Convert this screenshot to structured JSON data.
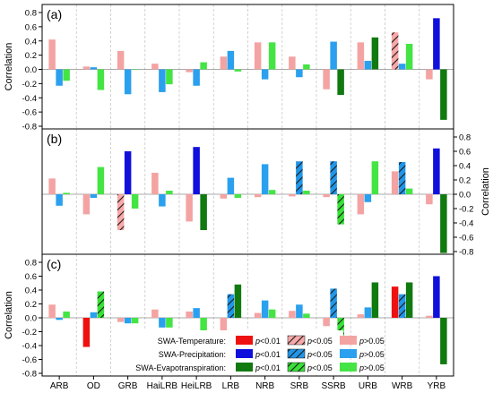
{
  "chart_data": {
    "type": "bar",
    "categories": [
      "ARB",
      "OD",
      "GRB",
      "HaiLRB",
      "HeiLRB",
      "LRB",
      "NRB",
      "SRB",
      "SSRB",
      "URB",
      "WRB",
      "YRB"
    ],
    "panels": [
      {
        "label": "(a)",
        "ylabel": "Correlation",
        "ylim": [
          -0.8,
          0.8
        ],
        "yticks": [
          "0.8",
          "0.6",
          "0.4",
          "0.2",
          "0.0",
          "-0.2",
          "-0.4",
          "-0.6",
          "-0.8"
        ],
        "axis_side": "left",
        "series": [
          {
            "variable": "temperature",
            "values": [
              0.42,
              0.04,
              0.26,
              0.08,
              -0.04,
              0.18,
              0.38,
              0.18,
              -0.28,
              0.38,
              0.52,
              -0.14
            ],
            "signif": [
              "p>0.05",
              "p>0.05",
              "p>0.05",
              "p>0.05",
              "p>0.05",
              "p>0.05",
              "p>0.05",
              "p>0.05",
              "p>0.05",
              "p>0.05",
              "p<0.05",
              "p>0.05"
            ]
          },
          {
            "variable": "precipitation",
            "values": [
              -0.23,
              0.03,
              -0.35,
              -0.32,
              -0.23,
              0.26,
              -0.14,
              -0.11,
              0.39,
              0.12,
              0.08,
              0.72
            ],
            "signif": [
              "p>0.05",
              "p>0.05",
              "p>0.05",
              "p>0.05",
              "p>0.05",
              "p>0.05",
              "p>0.05",
              "p>0.05",
              "p>0.05",
              "p>0.05",
              "p>0.05",
              "p<0.01"
            ]
          },
          {
            "variable": "evapotranspiration",
            "values": [
              -0.16,
              -0.29,
              0.0,
              -0.21,
              0.1,
              -0.03,
              0.38,
              0.07,
              -0.36,
              0.45,
              0.36,
              -0.71
            ],
            "signif": [
              "p>0.05",
              "p>0.05",
              "p>0.05",
              "p>0.05",
              "p>0.05",
              "p>0.05",
              "p>0.05",
              "p>0.05",
              "p<0.01",
              "p<0.01",
              "p>0.05",
              "p<0.01"
            ]
          }
        ]
      },
      {
        "label": "(b)",
        "ylabel": "Correlation",
        "ylim": [
          -0.8,
          0.8
        ],
        "yticks": [
          "0.8",
          "0.6",
          "0.4",
          "0.2",
          "0.0",
          "-0.2",
          "-0.4",
          "-0.6",
          "-0.8"
        ],
        "axis_side": "right",
        "series": [
          {
            "variable": "temperature",
            "values": [
              0.22,
              -0.28,
              -0.5,
              0.3,
              -0.38,
              -0.06,
              -0.04,
              -0.03,
              -0.04,
              -0.28,
              0.32,
              -0.14
            ],
            "signif": [
              "p>0.05",
              "p>0.05",
              "p<0.05",
              "p>0.05",
              "p>0.05",
              "p>0.05",
              "p>0.05",
              "p>0.05",
              "p>0.05",
              "p>0.05",
              "p>0.05",
              "p>0.05"
            ]
          },
          {
            "variable": "precipitation",
            "values": [
              -0.16,
              -0.05,
              0.6,
              -0.17,
              0.66,
              0.23,
              0.42,
              0.46,
              0.46,
              -0.11,
              0.45,
              0.64
            ],
            "signif": [
              "p>0.05",
              "p>0.05",
              "p<0.01",
              "p>0.05",
              "p<0.01",
              "p>0.05",
              "p>0.05",
              "p<0.05",
              "p<0.05",
              "p>0.05",
              "p<0.05",
              "p<0.01"
            ]
          },
          {
            "variable": "evapotranspiration",
            "values": [
              0.02,
              0.38,
              -0.2,
              0.05,
              -0.5,
              -0.05,
              0.06,
              0.05,
              -0.42,
              0.46,
              0.08,
              -0.82
            ],
            "signif": [
              "p>0.05",
              "p>0.05",
              "p>0.05",
              "p>0.05",
              "p<0.01",
              "p>0.05",
              "p>0.05",
              "p>0.05",
              "p<0.05",
              "p>0.05",
              "p>0.05",
              "p<0.01"
            ]
          }
        ]
      },
      {
        "label": "(c)",
        "ylabel": "Correlation",
        "ylim": [
          -0.8,
          0.8
        ],
        "yticks": [
          "0.8",
          "0.6",
          "0.4",
          "0.2",
          "0.0",
          "-0.2",
          "-0.4",
          "-0.6",
          "-0.8"
        ],
        "axis_side": "left",
        "series": [
          {
            "variable": "temperature",
            "values": [
              0.19,
              -0.42,
              -0.06,
              0.12,
              0.09,
              -0.24,
              0.07,
              0.1,
              -0.12,
              0.05,
              0.45,
              0.03
            ],
            "signif": [
              "p>0.05",
              "p<0.01",
              "p>0.05",
              "p>0.05",
              "p>0.05",
              "p>0.05",
              "p>0.05",
              "p>0.05",
              "p>0.05",
              "p>0.05",
              "p<0.01",
              "p>0.05"
            ]
          },
          {
            "variable": "precipitation",
            "values": [
              -0.03,
              0.08,
              -0.08,
              -0.14,
              0.14,
              0.34,
              0.25,
              0.19,
              0.42,
              0.15,
              0.34,
              0.6
            ],
            "signif": [
              "p>0.05",
              "p>0.05",
              "p>0.05",
              "p>0.05",
              "p>0.05",
              "p<0.05",
              "p>0.05",
              "p>0.05",
              "p<0.05",
              "p>0.05",
              "p<0.05",
              "p<0.01"
            ]
          },
          {
            "variable": "evapotranspiration",
            "values": [
              0.09,
              0.38,
              -0.08,
              -0.14,
              -0.19,
              0.48,
              0.12,
              0.06,
              -0.36,
              0.51,
              0.51,
              -0.67
            ],
            "signif": [
              "p>0.05",
              "p<0.05",
              "p>0.05",
              "p>0.05",
              "p>0.05",
              "p<0.01",
              "p>0.05",
              "p>0.05",
              "p<0.05",
              "p<0.01",
              "p<0.01",
              "p<0.01"
            ]
          }
        ]
      }
    ],
    "legend": {
      "placement": "bottom-right of panel (c)",
      "rows": [
        {
          "label": "SWA-Temperature:",
          "variable": "temperature"
        },
        {
          "label": "SWA-Precipitation:",
          "variable": "precipitation"
        },
        {
          "label": "SWA-Evapotranspiration:",
          "variable": "evapotranspiration"
        }
      ],
      "levels": [
        "p<0.01",
        "p<0.05",
        "p>0.05"
      ]
    },
    "colors": {
      "temperature": {
        "p<0.01": "#ee1111",
        "p<0.05": "#f7a8a8",
        "p>0.05": "#f4a3a3"
      },
      "precipitation": {
        "p<0.01": "#1010dd",
        "p<0.05": "#2196e8",
        "p>0.05": "#2aa0ee"
      },
      "evapotranspiration": {
        "p<0.01": "#107a10",
        "p<0.05": "#38e038",
        "p>0.05": "#44e444"
      },
      "hatch": "#1a1a1a",
      "grid": "#c8c8c8"
    },
    "grid": {
      "vertical_dashed": true
    }
  }
}
